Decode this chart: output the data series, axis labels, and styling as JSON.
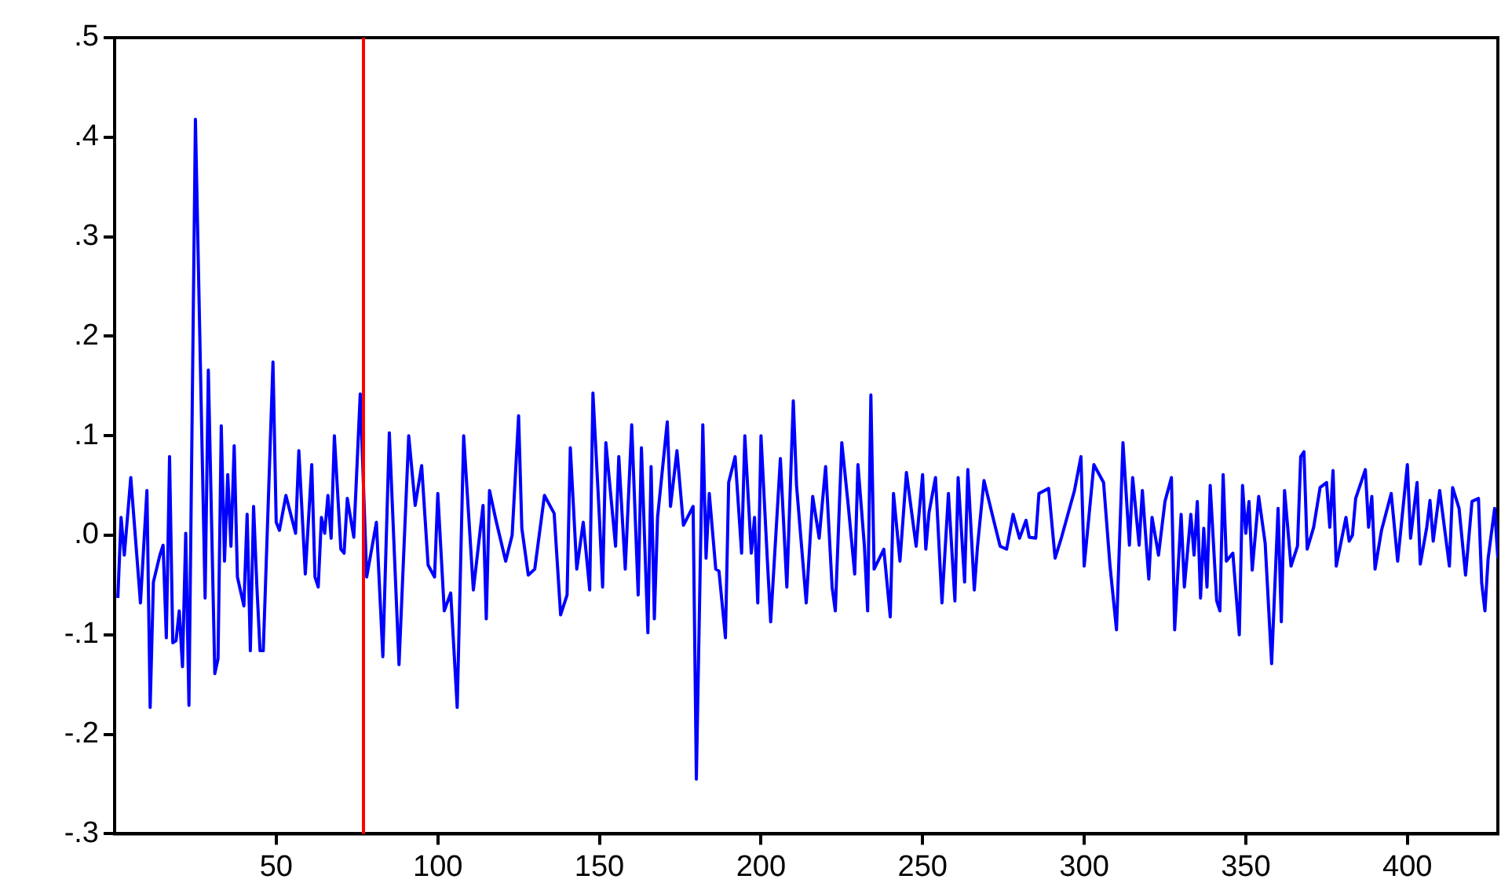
{
  "chart_data": {
    "type": "line",
    "x": [
      1,
      2,
      3,
      5,
      8,
      10,
      11,
      12,
      14,
      15,
      16,
      17,
      18,
      19,
      20,
      21,
      22,
      23,
      25,
      28,
      29,
      31,
      32,
      33,
      34,
      35,
      36,
      37,
      38,
      40,
      41,
      42,
      43,
      44,
      45,
      46,
      49,
      50,
      51,
      53,
      56,
      57,
      59,
      61,
      62,
      63,
      64,
      65,
      66,
      67,
      68,
      70,
      71,
      72,
      74,
      76,
      78,
      81,
      83,
      85,
      88,
      91,
      93,
      95,
      97,
      99,
      100,
      102,
      104,
      106,
      108,
      111,
      114,
      115,
      116,
      118,
      121,
      123,
      125,
      126,
      128,
      130,
      133,
      136,
      138,
      140,
      141,
      143,
      145,
      147,
      148,
      150,
      151,
      152,
      155,
      156,
      158,
      160,
      162,
      163,
      165,
      166,
      167,
      168,
      171,
      172,
      174,
      176,
      179,
      180,
      182,
      183,
      184,
      186,
      187,
      189,
      190,
      192,
      194,
      195,
      197,
      198,
      199,
      200,
      202,
      203,
      206,
      208,
      210,
      211,
      214,
      216,
      218,
      220,
      222,
      223,
      225,
      227,
      229,
      230,
      232,
      233,
      234,
      235,
      238,
      240,
      241,
      243,
      245,
      248,
      250,
      251,
      252,
      254,
      256,
      258,
      260,
      261,
      263,
      264,
      266,
      267,
      269,
      272,
      274,
      276,
      278,
      280,
      282,
      283,
      285,
      286,
      289,
      291,
      293,
      297,
      299,
      300,
      303,
      306,
      308,
      310,
      312,
      314,
      315,
      317,
      318,
      320,
      321,
      323,
      325,
      327,
      328,
      330,
      331,
      333,
      334,
      335,
      336,
      337,
      338,
      339,
      341,
      342,
      343,
      344,
      346,
      348,
      349,
      350,
      351,
      352,
      354,
      356,
      358,
      360,
      361,
      362,
      364,
      366,
      367,
      368,
      369,
      371,
      373,
      375,
      376,
      377,
      378,
      381,
      382,
      383,
      384,
      387,
      388,
      389,
      390,
      392,
      395,
      397,
      400,
      401,
      403,
      404,
      406,
      407,
      408,
      410,
      413,
      414,
      416,
      418,
      420,
      422,
      423,
      424,
      425,
      427,
      428
    ],
    "series": [
      {
        "color": "#0000ff",
        "values": [
          -0.063,
          0.018,
          -0.02,
          0.058,
          -0.068,
          0.045,
          -0.173,
          -0.047,
          -0.02,
          -0.01,
          -0.103,
          0.079,
          -0.108,
          -0.106,
          -0.076,
          -0.132,
          0.002,
          -0.171,
          0.418,
          -0.063,
          0.166,
          -0.139,
          -0.124,
          0.11,
          -0.026,
          0.061,
          -0.011,
          0.09,
          -0.042,
          -0.071,
          0.021,
          -0.116,
          0.029,
          -0.05,
          -0.116,
          -0.116,
          0.174,
          0.013,
          0.005,
          0.04,
          0.002,
          0.085,
          -0.039,
          0.071,
          -0.042,
          -0.052,
          0.018,
          0.002,
          0.04,
          -0.003,
          0.1,
          -0.014,
          -0.018,
          0.037,
          -0.002,
          0.142,
          -0.042,
          0.013,
          -0.122,
          0.103,
          -0.13,
          0.1,
          0.03,
          0.07,
          -0.03,
          -0.042,
          0.042,
          -0.076,
          -0.058,
          -0.173,
          0.1,
          -0.055,
          0.03,
          -0.084,
          0.045,
          0.015,
          -0.026,
          0.0,
          0.12,
          0.007,
          -0.04,
          -0.034,
          0.04,
          0.022,
          -0.08,
          -0.06,
          0.088,
          -0.034,
          0.013,
          -0.055,
          0.143,
          0.018,
          -0.052,
          0.093,
          -0.011,
          0.079,
          -0.034,
          0.111,
          -0.06,
          0.088,
          -0.098,
          0.069,
          -0.084,
          0.018,
          0.114,
          0.029,
          0.085,
          0.01,
          0.029,
          -0.245,
          0.111,
          -0.023,
          0.042,
          -0.034,
          -0.036,
          -0.103,
          0.053,
          0.079,
          -0.018,
          0.1,
          -0.018,
          0.018,
          -0.068,
          0.1,
          -0.027,
          -0.087,
          0.077,
          -0.052,
          0.135,
          0.05,
          -0.068,
          0.039,
          -0.003,
          0.069,
          -0.052,
          -0.076,
          0.093,
          0.03,
          -0.039,
          0.071,
          -0.011,
          -0.076,
          0.141,
          -0.034,
          -0.014,
          -0.082,
          0.042,
          -0.026,
          0.063,
          -0.011,
          0.061,
          -0.014,
          0.023,
          0.058,
          -0.068,
          0.042,
          -0.066,
          0.058,
          -0.047,
          0.066,
          -0.055,
          -0.011,
          0.055,
          0.015,
          -0.011,
          -0.014,
          0.021,
          -0.003,
          0.015,
          -0.002,
          -0.003,
          0.042,
          0.047,
          -0.023,
          -0.002,
          0.045,
          0.079,
          -0.031,
          0.071,
          0.053,
          -0.031,
          -0.095,
          0.093,
          -0.01,
          0.058,
          -0.01,
          0.045,
          -0.044,
          0.018,
          -0.02,
          0.034,
          0.058,
          -0.095,
          0.021,
          -0.052,
          0.021,
          -0.02,
          0.034,
          -0.063,
          0.007,
          -0.052,
          0.05,
          -0.066,
          -0.076,
          0.061,
          -0.026,
          -0.018,
          -0.1,
          0.05,
          0.002,
          0.034,
          -0.035,
          0.039,
          -0.008,
          -0.129,
          0.027,
          -0.087,
          0.045,
          -0.031,
          -0.011,
          0.079,
          0.084,
          -0.014,
          0.008,
          0.048,
          0.053,
          0.008,
          0.065,
          -0.031,
          0.018,
          -0.006,
          0.0,
          0.037,
          0.066,
          0.008,
          0.039,
          -0.034,
          0.005,
          0.042,
          -0.026,
          0.071,
          -0.003,
          0.053,
          -0.029,
          0.008,
          0.035,
          -0.006,
          0.045,
          -0.031,
          0.048,
          0.027,
          -0.04,
          0.034,
          0.037,
          -0.048,
          -0.076,
          -0.023,
          0.027,
          -0.023
        ]
      }
    ],
    "xlim": [
      0,
      428
    ],
    "xticks": [
      50,
      100,
      150,
      200,
      250,
      300,
      350,
      400
    ],
    "ylim": [
      -0.3,
      0.5
    ],
    "yticks": [
      {
        "value": -0.3,
        "label": "-.3"
      },
      {
        "value": -0.2,
        "label": "-.2"
      },
      {
        "value": -0.1,
        "label": "-.1"
      },
      {
        "value": 0,
        "label": ".0"
      },
      {
        "value": 0.1,
        "label": ".1"
      },
      {
        "value": 0.2,
        "label": ".2"
      },
      {
        "value": 0.3,
        "label": ".3"
      },
      {
        "value": 0.4,
        "label": ".4"
      },
      {
        "value": 0.5,
        "label": ".5"
      }
    ],
    "ref_lines": [
      {
        "axis": "x",
        "value": 77,
        "color": "#ff0000"
      }
    ],
    "marker": "none",
    "line_style": "solid"
  }
}
